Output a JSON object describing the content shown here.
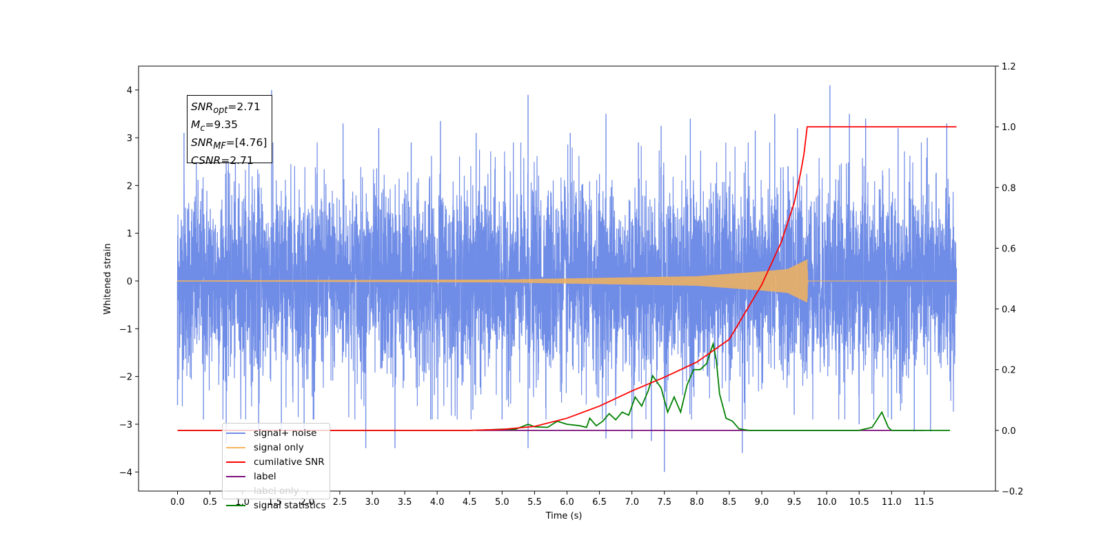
{
  "chart_data": {
    "type": "line",
    "xlabel": "Time (s)",
    "ylabel": "Whitened strain",
    "xlim": [
      -0.6,
      12.6
    ],
    "ylim_left": [
      -4.4,
      4.5
    ],
    "ylim_right": [
      -0.2,
      1.2
    ],
    "x_ticks": [
      "0.0",
      "0.5",
      "1.0",
      "1.5",
      "2.0",
      "2.5",
      "3.0",
      "3.5",
      "4.0",
      "4.5",
      "5.0",
      "5.5",
      "6.0",
      "6.5",
      "7.0",
      "7.5",
      "8.0",
      "8.5",
      "9.0",
      "9.5",
      "10.0",
      "10.5",
      "11.0",
      "11.5"
    ],
    "y_ticks_left": [
      "4",
      "3",
      "2",
      "1",
      "0",
      "−1",
      "−2",
      "−3",
      "−4"
    ],
    "y_ticks_right": [
      "1.2",
      "1.0",
      "0.8",
      "0.6",
      "0.4",
      "0.2",
      "0.0",
      "−0.2"
    ],
    "grid": false,
    "legend_position": "lower-left",
    "annotations": {
      "snr_opt": {
        "symbol": "SNR",
        "subscript": "opt",
        "value": "=2.71"
      },
      "m_c": {
        "symbol": "M",
        "subscript": "c",
        "value": "=9.35"
      },
      "snr_mf": {
        "symbol": "SNR",
        "subscript": "MF",
        "value": "=[4.76]"
      },
      "csnr": {
        "symbol": "CSNR",
        "subscript": "",
        "value": "=2.71"
      }
    },
    "series": [
      {
        "name": "signal+ noise",
        "color": "#6f8ce6",
        "axis": "left",
        "x_range": [
          0,
          12
        ],
        "std": 1.0,
        "peaks_high": [
          [
            0.1,
            3.1
          ],
          [
            0.75,
            2.9
          ],
          [
            1.1,
            3.5
          ],
          [
            1.45,
            4.0
          ],
          [
            2.55,
            3.3
          ],
          [
            3.1,
            3.2
          ],
          [
            3.6,
            2.9
          ],
          [
            4.05,
            3.35
          ],
          [
            4.6,
            3.1
          ],
          [
            5.4,
            3.9
          ],
          [
            6.05,
            3.1
          ],
          [
            6.6,
            3.5
          ],
          [
            7.1,
            2.9
          ],
          [
            7.45,
            3.25
          ],
          [
            7.9,
            3.4
          ],
          [
            8.9,
            3.15
          ],
          [
            9.2,
            3.5
          ],
          [
            9.55,
            3.2
          ],
          [
            10.05,
            4.1
          ],
          [
            10.35,
            3.5
          ],
          [
            10.6,
            3.4
          ],
          [
            11.1,
            3.2
          ],
          [
            11.55,
            3.0
          ],
          [
            11.85,
            3.3
          ]
        ],
        "peaks_low": [
          [
            0.0,
            -2.6
          ],
          [
            0.4,
            -2.9
          ],
          [
            0.75,
            -3.4
          ],
          [
            1.25,
            -3.2
          ],
          [
            1.6,
            -3.1
          ],
          [
            1.95,
            -3.1
          ],
          [
            2.1,
            -2.9
          ],
          [
            2.9,
            -3.5
          ],
          [
            3.35,
            -3.5
          ],
          [
            3.9,
            -2.9
          ],
          [
            4.55,
            -2.7
          ],
          [
            5.0,
            -2.9
          ],
          [
            5.4,
            -3.5
          ],
          [
            6.6,
            -3.3
          ],
          [
            7.0,
            -3.3
          ],
          [
            7.3,
            -3.35
          ],
          [
            7.5,
            -4.0
          ],
          [
            8.7,
            -3.6
          ],
          [
            9.5,
            -2.8
          ],
          [
            10.5,
            -3.0
          ],
          [
            11.0,
            -2.9
          ],
          [
            11.35,
            -3.15
          ],
          [
            11.6,
            -3.15
          ]
        ]
      },
      {
        "name": "signal only",
        "color": "#f5b35a",
        "axis": "left",
        "x_range": [
          0,
          12
        ],
        "envelope": [
          [
            0,
            0.01
          ],
          [
            5,
            0.03
          ],
          [
            8.0,
            0.1
          ],
          [
            8.5,
            0.15
          ],
          [
            9.0,
            0.2
          ],
          [
            9.4,
            0.25
          ],
          [
            9.7,
            0.45
          ],
          [
            9.71,
            0
          ],
          [
            12,
            0
          ]
        ]
      },
      {
        "name": "cumilative SNR",
        "color": "#ff0000",
        "axis": "right",
        "points": [
          [
            0,
            0
          ],
          [
            4.5,
            0
          ],
          [
            5.0,
            0.003
          ],
          [
            5.5,
            0.013
          ],
          [
            6.0,
            0.04
          ],
          [
            6.5,
            0.08
          ],
          [
            7.0,
            0.13
          ],
          [
            7.5,
            0.175
          ],
          [
            8.0,
            0.225
          ],
          [
            8.5,
            0.3
          ],
          [
            9.0,
            0.48
          ],
          [
            9.3,
            0.62
          ],
          [
            9.5,
            0.75
          ],
          [
            9.6,
            0.85
          ],
          [
            9.65,
            0.91
          ],
          [
            9.7,
            1.0
          ],
          [
            12,
            1.0
          ]
        ]
      },
      {
        "name": "label",
        "color": "#7a0f7a",
        "axis": "right",
        "points": [
          [
            4.6,
            0.0
          ],
          [
            11.5,
            0.0
          ]
        ]
      },
      {
        "name": "label only",
        "color": "#dcdcdc",
        "axis": "right",
        "points": []
      },
      {
        "name": "signal statistics",
        "color": "#008000",
        "axis": "right",
        "points": [
          [
            0,
            0
          ],
          [
            4.5,
            0
          ],
          [
            4.8,
            0.002
          ],
          [
            5.0,
            0.004
          ],
          [
            5.2,
            0.003
          ],
          [
            5.4,
            0.02
          ],
          [
            5.5,
            0.012
          ],
          [
            5.7,
            0.01
          ],
          [
            5.85,
            0.03
          ],
          [
            6.0,
            0.02
          ],
          [
            6.2,
            0.015
          ],
          [
            6.3,
            0.01
          ],
          [
            6.35,
            0.04
          ],
          [
            6.45,
            0.015
          ],
          [
            6.55,
            0.03
          ],
          [
            6.65,
            0.055
          ],
          [
            6.75,
            0.035
          ],
          [
            6.85,
            0.06
          ],
          [
            6.95,
            0.05
          ],
          [
            7.05,
            0.11
          ],
          [
            7.15,
            0.08
          ],
          [
            7.25,
            0.13
          ],
          [
            7.32,
            0.18
          ],
          [
            7.45,
            0.14
          ],
          [
            7.55,
            0.06
          ],
          [
            7.65,
            0.11
          ],
          [
            7.75,
            0.06
          ],
          [
            7.85,
            0.15
          ],
          [
            7.95,
            0.2
          ],
          [
            8.05,
            0.2
          ],
          [
            8.15,
            0.22
          ],
          [
            8.25,
            0.285
          ],
          [
            8.3,
            0.23
          ],
          [
            8.35,
            0.12
          ],
          [
            8.45,
            0.04
          ],
          [
            8.55,
            0.03
          ],
          [
            8.65,
            0.005
          ],
          [
            8.8,
            0.0
          ],
          [
            10.5,
            0.0
          ],
          [
            10.7,
            0.01
          ],
          [
            10.85,
            0.06
          ],
          [
            10.95,
            0.01
          ],
          [
            11.0,
            0.0
          ],
          [
            11.9,
            0.0
          ]
        ]
      }
    ]
  }
}
